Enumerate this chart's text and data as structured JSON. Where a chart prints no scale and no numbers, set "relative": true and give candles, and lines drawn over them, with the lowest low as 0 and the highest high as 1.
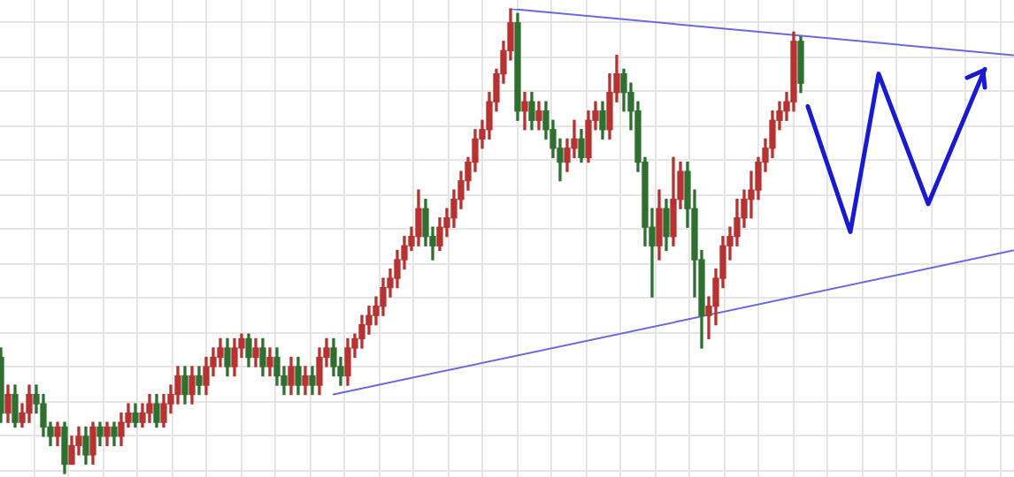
{
  "chart_data": {
    "type": "candlestick",
    "relative": true,
    "grid": true,
    "tick_labels": false,
    "categories": [
      null,
      null,
      null,
      null,
      null,
      null,
      null,
      null,
      null,
      null,
      null,
      null,
      null,
      null,
      null,
      null,
      null,
      null,
      null,
      null,
      null,
      null,
      null,
      null,
      null,
      null,
      null,
      null,
      null,
      null,
      null,
      null,
      null,
      null,
      null,
      null,
      null,
      null,
      null,
      null,
      null,
      null,
      null,
      null,
      null,
      null,
      null,
      null,
      null,
      null,
      null,
      null,
      null,
      null,
      null,
      null,
      null,
      null,
      null,
      null,
      null,
      null,
      null,
      null,
      null,
      null,
      null,
      null,
      null,
      null,
      null,
      null,
      null,
      null,
      null,
      null,
      null,
      null,
      null,
      null,
      null,
      null,
      null,
      null,
      null,
      null,
      null,
      null,
      null,
      null,
      null,
      null,
      null,
      null,
      null,
      null,
      null,
      null,
      null,
      null,
      null,
      null,
      null,
      null,
      null,
      null,
      null,
      null,
      null,
      null,
      null,
      null,
      null,
      null,
      null,
      null,
      null,
      null,
      null,
      null,
      null,
      null,
      null,
      null,
      null,
      null,
      null,
      null,
      null,
      null,
      null,
      null,
      null,
      null,
      null,
      null,
      null,
      null,
      null,
      null,
      null,
      null,
      null,
      null
    ],
    "ohlc": [
      [
        0.25,
        0.27,
        0.11,
        0.13
      ],
      [
        0.13,
        0.19,
        0.11,
        0.17
      ],
      [
        0.17,
        0.19,
        0.1,
        0.11
      ],
      [
        0.11,
        0.15,
        0.1,
        0.13
      ],
      [
        0.13,
        0.19,
        0.11,
        0.17
      ],
      [
        0.17,
        0.19,
        0.13,
        0.15
      ],
      [
        0.15,
        0.17,
        0.08,
        0.1
      ],
      [
        0.1,
        0.11,
        0.06,
        0.08
      ],
      [
        0.08,
        0.11,
        0.06,
        0.1
      ],
      [
        0.1,
        0.11,
        0,
        0.02
      ],
      [
        0.02,
        0.08,
        0.02,
        0.06
      ],
      [
        0.06,
        0.1,
        0.04,
        0.08
      ],
      [
        0.08,
        0.1,
        0.02,
        0.04
      ],
      [
        0.04,
        0.11,
        0.02,
        0.1
      ],
      [
        0.1,
        0.11,
        0.06,
        0.08
      ],
      [
        0.08,
        0.11,
        0.06,
        0.1
      ],
      [
        0.1,
        0.11,
        0.06,
        0.08
      ],
      [
        0.08,
        0.13,
        0.06,
        0.11
      ],
      [
        0.11,
        0.15,
        0.1,
        0.13
      ],
      [
        0.13,
        0.15,
        0.1,
        0.11
      ],
      [
        0.11,
        0.15,
        0.1,
        0.13
      ],
      [
        0.13,
        0.17,
        0.11,
        0.15
      ],
      [
        0.15,
        0.17,
        0.1,
        0.11
      ],
      [
        0.11,
        0.17,
        0.1,
        0.15
      ],
      [
        0.15,
        0.19,
        0.13,
        0.17
      ],
      [
        0.17,
        0.23,
        0.15,
        0.21
      ],
      [
        0.21,
        0.23,
        0.15,
        0.17
      ],
      [
        0.17,
        0.23,
        0.15,
        0.21
      ],
      [
        0.21,
        0.23,
        0.17,
        0.19
      ],
      [
        0.19,
        0.25,
        0.17,
        0.23
      ],
      [
        0.23,
        0.27,
        0.21,
        0.25
      ],
      [
        0.25,
        0.29,
        0.23,
        0.27
      ],
      [
        0.27,
        0.29,
        0.21,
        0.23
      ],
      [
        0.23,
        0.29,
        0.21,
        0.27
      ],
      [
        0.27,
        0.3,
        0.25,
        0.29
      ],
      [
        0.29,
        0.3,
        0.23,
        0.25
      ],
      [
        0.25,
        0.29,
        0.23,
        0.27
      ],
      [
        0.27,
        0.29,
        0.21,
        0.23
      ],
      [
        0.23,
        0.27,
        0.21,
        0.25
      ],
      [
        0.25,
        0.27,
        0.19,
        0.21
      ],
      [
        0.21,
        0.23,
        0.17,
        0.19
      ],
      [
        0.19,
        0.25,
        0.17,
        0.23
      ],
      [
        0.23,
        0.25,
        0.17,
        0.19
      ],
      [
        0.19,
        0.23,
        0.17,
        0.21
      ],
      [
        0.21,
        0.23,
        0.17,
        0.19
      ],
      [
        0.19,
        0.27,
        0.17,
        0.25
      ],
      [
        0.25,
        0.29,
        0.23,
        0.27
      ],
      [
        0.27,
        0.29,
        0.21,
        0.23
      ],
      [
        0.23,
        0.25,
        0.19,
        0.21
      ],
      [
        0.21,
        0.29,
        0.19,
        0.27
      ],
      [
        0.27,
        0.3,
        0.25,
        0.29
      ],
      [
        0.29,
        0.34,
        0.27,
        0.32
      ],
      [
        0.32,
        0.36,
        0.3,
        0.34
      ],
      [
        0.34,
        0.38,
        0.32,
        0.36
      ],
      [
        0.36,
        0.42,
        0.34,
        0.4
      ],
      [
        0.4,
        0.44,
        0.38,
        0.42
      ],
      [
        0.42,
        0.48,
        0.4,
        0.46
      ],
      [
        0.46,
        0.51,
        0.44,
        0.49
      ],
      [
        0.49,
        0.53,
        0.48,
        0.51
      ],
      [
        0.51,
        0.61,
        0.49,
        0.57
      ],
      [
        0.57,
        0.59,
        0.49,
        0.51
      ],
      [
        0.51,
        0.53,
        0.46,
        0.49
      ],
      [
        0.49,
        0.55,
        0.48,
        0.53
      ],
      [
        0.53,
        0.57,
        0.51,
        0.55
      ],
      [
        0.55,
        0.61,
        0.53,
        0.59
      ],
      [
        0.59,
        0.65,
        0.57,
        0.63
      ],
      [
        0.63,
        0.68,
        0.61,
        0.67
      ],
      [
        0.67,
        0.74,
        0.65,
        0.72
      ],
      [
        0.72,
        0.76,
        0.7,
        0.74
      ],
      [
        0.74,
        0.82,
        0.72,
        0.8
      ],
      [
        0.8,
        0.87,
        0.78,
        0.86
      ],
      [
        0.86,
        0.93,
        0.84,
        0.91
      ],
      [
        0.91,
        1,
        0.89,
        0.97
      ],
      [
        0.97,
        0.99,
        0.76,
        0.78
      ],
      [
        0.78,
        0.82,
        0.74,
        0.8
      ],
      [
        0.8,
        0.82,
        0.74,
        0.76
      ],
      [
        0.76,
        0.8,
        0.74,
        0.78
      ],
      [
        0.78,
        0.8,
        0.72,
        0.74
      ],
      [
        0.74,
        0.76,
        0.68,
        0.7
      ],
      [
        0.7,
        0.72,
        0.63,
        0.67
      ],
      [
        0.67,
        0.72,
        0.65,
        0.7
      ],
      [
        0.7,
        0.76,
        0.68,
        0.72
      ],
      [
        0.72,
        0.74,
        0.67,
        0.68
      ],
      [
        0.68,
        0.78,
        0.67,
        0.76
      ],
      [
        0.76,
        0.8,
        0.74,
        0.78
      ],
      [
        0.78,
        0.8,
        0.72,
        0.74
      ],
      [
        0.74,
        0.86,
        0.72,
        0.82
      ],
      [
        0.82,
        0.9,
        0.8,
        0.86
      ],
      [
        0.86,
        0.87,
        0.78,
        0.82
      ],
      [
        0.82,
        0.84,
        0.74,
        0.78
      ],
      [
        0.78,
        0.8,
        0.65,
        0.67
      ],
      [
        0.67,
        0.68,
        0.49,
        0.53
      ],
      [
        0.53,
        0.57,
        0.38,
        0.49
      ],
      [
        0.49,
        0.61,
        0.46,
        0.57
      ],
      [
        0.57,
        0.59,
        0.48,
        0.51
      ],
      [
        0.51,
        0.68,
        0.49,
        0.59
      ],
      [
        0.59,
        0.67,
        0.57,
        0.65
      ],
      [
        0.65,
        0.67,
        0.53,
        0.57
      ],
      [
        0.57,
        0.61,
        0.38,
        0.46
      ],
      [
        0.46,
        0.48,
        0.27,
        0.34
      ],
      [
        0.34,
        0.38,
        0.29,
        0.36
      ],
      [
        0.36,
        0.44,
        0.32,
        0.42
      ],
      [
        0.42,
        0.51,
        0.4,
        0.49
      ],
      [
        0.49,
        0.53,
        0.46,
        0.51
      ],
      [
        0.51,
        0.59,
        0.49,
        0.55
      ],
      [
        0.55,
        0.61,
        0.53,
        0.59
      ],
      [
        0.59,
        0.65,
        0.55,
        0.61
      ],
      [
        0.61,
        0.68,
        0.59,
        0.67
      ],
      [
        0.67,
        0.72,
        0.65,
        0.7
      ],
      [
        0.7,
        0.78,
        0.68,
        0.76
      ],
      [
        0.76,
        0.8,
        0.74,
        0.78
      ],
      [
        0.78,
        0.82,
        0.76,
        0.8
      ],
      [
        0.8,
        0.95,
        0.78,
        0.93
      ],
      [
        0.93,
        0.94,
        0.82,
        0.84
      ],
      null,
      null,
      null,
      null,
      null,
      null,
      null,
      null,
      null,
      null,
      null,
      null,
      null,
      null,
      null,
      null,
      null,
      null,
      null,
      null,
      null,
      null,
      null,
      null,
      null,
      null,
      null,
      null,
      null,
      null
    ],
    "colors": [
      "#2f6f2f",
      "#b83232",
      "#2f6f2f",
      "#b83232",
      "#b83232",
      "#2f6f2f",
      "#2f6f2f",
      "#2f6f2f",
      "#b83232",
      "#2f6f2f",
      "#b83232",
      "#b83232",
      "#2f6f2f",
      "#b83232",
      "#2f6f2f",
      "#b83232",
      "#2f6f2f",
      "#b83232",
      "#b83232",
      "#2f6f2f",
      "#b83232",
      "#b83232",
      "#2f6f2f",
      "#b83232",
      "#b83232",
      "#b83232",
      "#2f6f2f",
      "#b83232",
      "#2f6f2f",
      "#b83232",
      "#b83232",
      "#b83232",
      "#2f6f2f",
      "#b83232",
      "#b83232",
      "#2f6f2f",
      "#b83232",
      "#2f6f2f",
      "#b83232",
      "#2f6f2f",
      "#2f6f2f",
      "#b83232",
      "#2f6f2f",
      "#b83232",
      "#2f6f2f",
      "#b83232",
      "#b83232",
      "#2f6f2f",
      "#2f6f2f",
      "#b83232",
      "#b83232",
      "#b83232",
      "#b83232",
      "#b83232",
      "#b83232",
      "#b83232",
      "#b83232",
      "#b83232",
      "#b83232",
      "#b83232",
      "#2f6f2f",
      "#2f6f2f",
      "#b83232",
      "#b83232",
      "#b83232",
      "#b83232",
      "#b83232",
      "#b83232",
      "#b83232",
      "#b83232",
      "#b83232",
      "#b83232",
      "#b83232",
      "#2f6f2f",
      "#b83232",
      "#2f6f2f",
      "#b83232",
      "#2f6f2f",
      "#2f6f2f",
      "#2f6f2f",
      "#b83232",
      "#b83232",
      "#2f6f2f",
      "#b83232",
      "#b83232",
      "#2f6f2f",
      "#b83232",
      "#b83232",
      "#2f6f2f",
      "#2f6f2f",
      "#2f6f2f",
      "#2f6f2f",
      "#2f6f2f",
      "#b83232",
      "#2f6f2f",
      "#b83232",
      "#b83232",
      "#2f6f2f",
      "#2f6f2f",
      "#2f6f2f",
      "#b83232",
      "#b83232",
      "#b83232",
      "#b83232",
      "#b83232",
      "#b83232",
      "#b83232",
      "#b83232",
      "#b83232",
      "#b83232",
      "#b83232",
      "#b83232",
      "#b83232",
      "#2f6f2f",
      null,
      null,
      null,
      null,
      null,
      null,
      null,
      null,
      null,
      null,
      null,
      null,
      null,
      null,
      null,
      null,
      null,
      null,
      null,
      null,
      null,
      null,
      null,
      null,
      null,
      null,
      null,
      null,
      null,
      null
    ],
    "series": [
      {
        "type": "line",
        "color": "#6a6ad8",
        "values": [
          null,
          null,
          null,
          null,
          null,
          null,
          null,
          null,
          null,
          null,
          null,
          null,
          null,
          null,
          null,
          null,
          null,
          null,
          null,
          null,
          null,
          null,
          null,
          null,
          null,
          null,
          null,
          null,
          null,
          null,
          null,
          null,
          null,
          null,
          null,
          null,
          null,
          null,
          null,
          null,
          null,
          null,
          null,
          null,
          null,
          null,
          null,
          null,
          null,
          null,
          null,
          null,
          null,
          null,
          null,
          null,
          null,
          null,
          null,
          null,
          null,
          null,
          null,
          null,
          null,
          null,
          null,
          null,
          null,
          null,
          null,
          null,
          1,
          null,
          null,
          null,
          null,
          null,
          null,
          null,
          null,
          null,
          null,
          null,
          null,
          null,
          null,
          null,
          null,
          null,
          null,
          null,
          null,
          null,
          null,
          null,
          null,
          null,
          null,
          null,
          null,
          null,
          null,
          null,
          null,
          null,
          null,
          null,
          null,
          null,
          null,
          null,
          null,
          null,
          null,
          null,
          null,
          null,
          null,
          null,
          null,
          null,
          null,
          null,
          null,
          null,
          null,
          null,
          null,
          null,
          null,
          null,
          null,
          null,
          null,
          null,
          null,
          null,
          null,
          null,
          null,
          null,
          null,
          0.9
        ]
      },
      {
        "type": "line",
        "color": "#6a6ad8",
        "values": [
          null,
          null,
          null,
          null,
          null,
          null,
          null,
          null,
          null,
          null,
          null,
          null,
          null,
          null,
          null,
          null,
          null,
          null,
          null,
          null,
          null,
          null,
          null,
          null,
          null,
          null,
          null,
          null,
          null,
          null,
          null,
          null,
          null,
          null,
          null,
          null,
          null,
          null,
          null,
          null,
          null,
          null,
          null,
          null,
          null,
          null,
          null,
          0.17,
          null,
          null,
          null,
          null,
          null,
          null,
          null,
          null,
          null,
          null,
          null,
          null,
          null,
          null,
          null,
          null,
          null,
          null,
          null,
          null,
          null,
          null,
          null,
          null,
          null,
          null,
          null,
          null,
          null,
          null,
          null,
          null,
          null,
          null,
          null,
          null,
          null,
          null,
          null,
          null,
          null,
          null,
          null,
          null,
          null,
          null,
          null,
          null,
          null,
          null,
          null,
          null,
          null,
          null,
          null,
          null,
          null,
          null,
          null,
          null,
          null,
          null,
          null,
          null,
          null,
          null,
          null,
          null,
          null,
          null,
          null,
          null,
          null,
          null,
          null,
          null,
          null,
          null,
          null,
          null,
          null,
          null,
          null,
          null,
          null,
          null,
          null,
          null,
          null,
          null,
          null,
          null,
          null,
          null,
          null,
          0.48
        ]
      },
      {
        "type": "line",
        "color": "#1a1ad0",
        "values": [
          null,
          null,
          null,
          null,
          null,
          null,
          null,
          null,
          null,
          null,
          null,
          null,
          null,
          null,
          null,
          null,
          null,
          null,
          null,
          null,
          null,
          null,
          null,
          null,
          null,
          null,
          null,
          null,
          null,
          null,
          null,
          null,
          null,
          null,
          null,
          null,
          null,
          null,
          null,
          null,
          null,
          null,
          null,
          null,
          null,
          null,
          null,
          null,
          null,
          null,
          null,
          null,
          null,
          null,
          null,
          null,
          null,
          null,
          null,
          null,
          null,
          null,
          null,
          null,
          null,
          null,
          null,
          null,
          null,
          null,
          null,
          null,
          null,
          null,
          null,
          null,
          null,
          null,
          null,
          null,
          null,
          null,
          null,
          null,
          null,
          null,
          null,
          null,
          null,
          null,
          null,
          null,
          null,
          null,
          null,
          null,
          null,
          null,
          null,
          null,
          null,
          null,
          null,
          null,
          null,
          null,
          null,
          null,
          null,
          null,
          null,
          null,
          null,
          null,
          0.79,
          null,
          null,
          null,
          null,
          null,
          0.52,
          null,
          null,
          null,
          0.86,
          null,
          null,
          null,
          null,
          null,
          null,
          0.58,
          null,
          null,
          null,
          null,
          null,
          null,
          null,
          0.87,
          null,
          null,
          null,
          null
        ]
      }
    ]
  }
}
